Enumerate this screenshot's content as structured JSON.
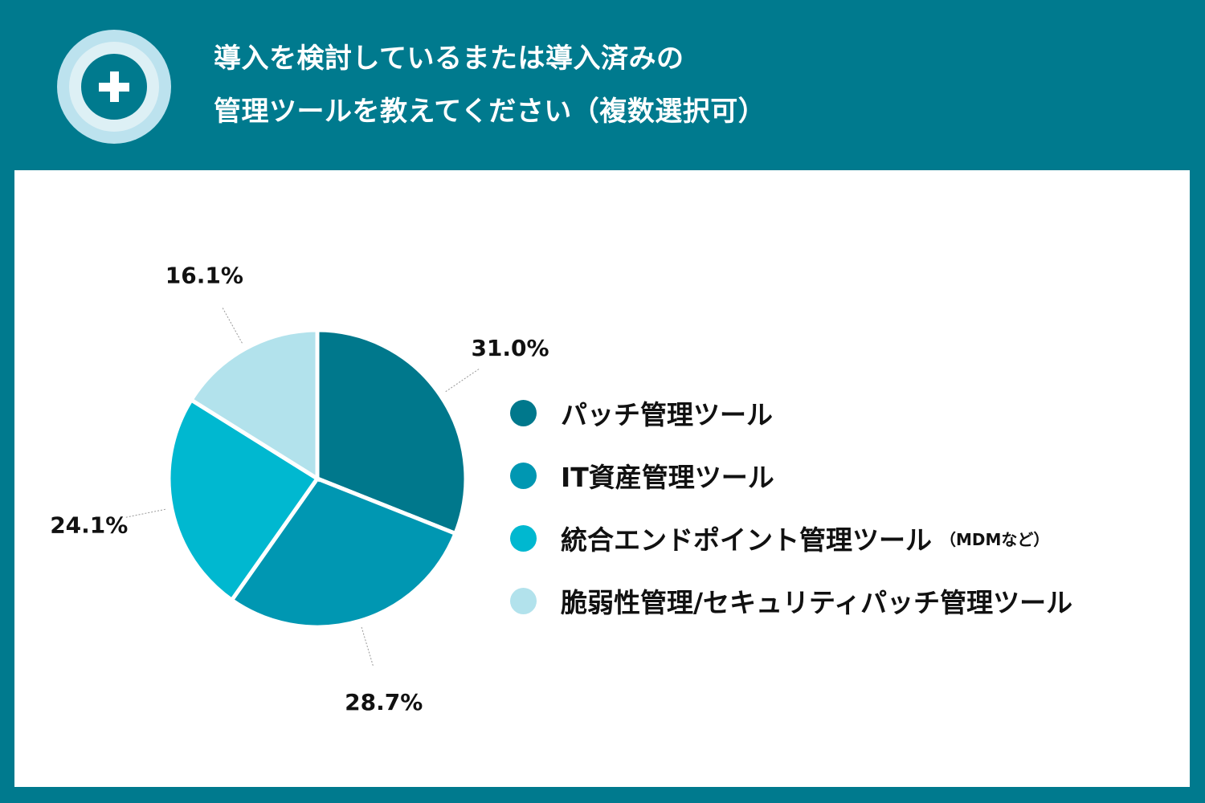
{
  "header": {
    "icon": "plus-circle-icon",
    "title_line1": "導入を検討しているまたは導入済みの",
    "title_line2": "管理ツールを教えてください（複数選択可）"
  },
  "chart_data": {
    "type": "pie",
    "title": "導入を検討しているまたは導入済みの管理ツールを教えてください（複数選択可）",
    "categories": [
      "パッチ管理ツール",
      "IT資産管理ツール",
      "統合エンドポイント管理ツール（MDMなど）",
      "脆弱性管理/セキュリティパッチ管理ツール"
    ],
    "values": [
      31.0,
      28.7,
      24.1,
      16.1
    ],
    "data_labels": [
      "31.0%",
      "28.7%",
      "24.1%",
      "16.1%"
    ],
    "colors": [
      "#00788C",
      "#0097B2",
      "#00B8D0",
      "#B2E2EC"
    ],
    "start": "top",
    "direction": "clockwise",
    "legend_position": "right"
  },
  "legend": [
    {
      "label": "パッチ管理ツール",
      "note": ""
    },
    {
      "label": "IT資産管理ツール",
      "note": ""
    },
    {
      "label": "統合エンドポイント管理ツール",
      "note": "（MDMなど）"
    },
    {
      "label": "脆弱性管理/セキュリティパッチ管理ツール",
      "note": ""
    }
  ]
}
